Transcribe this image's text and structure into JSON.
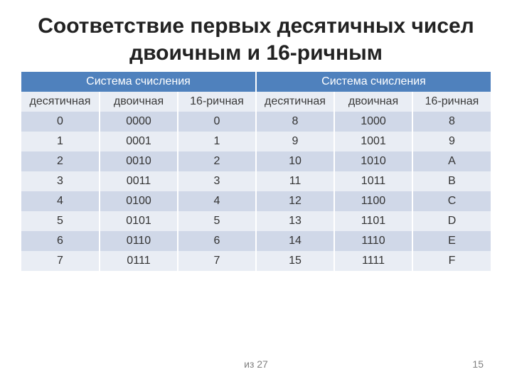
{
  "title": "Соответствие первых десятичных чисел двоичным и 16-ричным",
  "table": {
    "group_header": [
      "Система счисления",
      "Система счисления"
    ],
    "sub_header": [
      "десятичная",
      "двоичная",
      "16-ричная",
      "десятичная",
      "двоичная",
      "16-ричная"
    ],
    "rows": [
      [
        "0",
        "0000",
        "0",
        "8",
        "1000",
        "8"
      ],
      [
        "1",
        "0001",
        "1",
        "9",
        "1001",
        "9"
      ],
      [
        "2",
        "0010",
        "2",
        "10",
        "1010",
        "A"
      ],
      [
        "3",
        "0011",
        "3",
        "11",
        "1011",
        "B"
      ],
      [
        "4",
        "0100",
        "4",
        "12",
        "1100",
        "C"
      ],
      [
        "5",
        "0101",
        "5",
        "13",
        "1101",
        "D"
      ],
      [
        "6",
        "0110",
        "6",
        "14",
        "1110",
        "E"
      ],
      [
        "7",
        "0111",
        "7",
        "15",
        "1111",
        "F"
      ]
    ],
    "colors": {
      "header_bg": "#4f81bd",
      "header_fg": "#ffffff",
      "band_light": "#e9edf4",
      "band_dark": "#d0d8e8",
      "text": "#333333"
    },
    "font_size_header": 16,
    "font_size_body": 16
  },
  "footer": {
    "center": "из 27",
    "page": "15"
  }
}
